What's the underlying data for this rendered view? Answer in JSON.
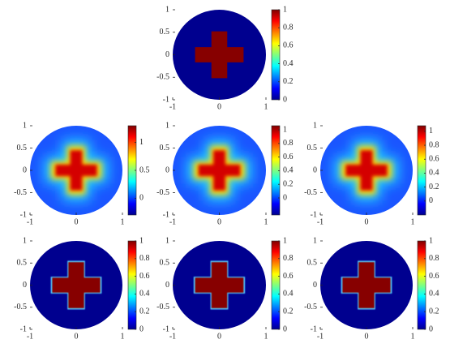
{
  "chart_data": [
    {
      "type": "image",
      "xlim": [
        -1,
        1
      ],
      "xticks": [
        -1,
        0,
        1
      ],
      "ylim": [
        -1,
        1
      ],
      "yticks": [
        -1,
        -0.5,
        0,
        0.5,
        1
      ],
      "clim": [
        0,
        1
      ],
      "cticks": [
        0,
        0.2,
        0.4,
        0.6,
        0.8,
        1
      ]
    },
    {
      "type": "image",
      "xlim": [
        -1,
        1
      ],
      "xticks": [
        -1,
        0,
        1
      ],
      "ylim": [
        -1,
        1
      ],
      "yticks": [
        -1,
        -0.5,
        0,
        0.5,
        1
      ],
      "clim": [
        -0.3,
        1.3
      ],
      "cticks": [
        0,
        0.5,
        1
      ]
    },
    {
      "type": "image",
      "xlim": [
        -1,
        1
      ],
      "xticks": [
        -1,
        0,
        1
      ],
      "ylim": [
        -1,
        1
      ],
      "yticks": [
        -1,
        -0.5,
        0,
        0.5,
        1
      ],
      "clim": [
        -0.25,
        1.06
      ],
      "cticks": [
        0,
        0.2,
        0.4,
        0.6,
        0.8,
        1
      ]
    },
    {
      "type": "image",
      "xlim": [
        -1,
        1
      ],
      "xticks": [
        -1,
        0,
        1
      ],
      "ylim": [
        -1,
        1
      ],
      "yticks": [
        -1,
        -0.5,
        0,
        0.5,
        1
      ],
      "clim": [
        -0.2,
        1.08
      ],
      "cticks": [
        0,
        0.2,
        0.4,
        0.6,
        0.8,
        1
      ]
    },
    {
      "type": "image",
      "xlim": [
        -1,
        1
      ],
      "xticks": [
        -1,
        0,
        1
      ],
      "ylim": [
        -1,
        1
      ],
      "yticks": [
        -1,
        -0.5,
        0,
        0.5,
        1
      ],
      "clim": [
        0,
        1
      ],
      "cticks": [
        0,
        0.2,
        0.4,
        0.6,
        0.8,
        1
      ]
    },
    {
      "type": "image",
      "xlim": [
        -1,
        1
      ],
      "xticks": [
        -1,
        0,
        1
      ],
      "ylim": [
        -1,
        1
      ],
      "yticks": [
        -1,
        -0.5,
        0,
        0.5,
        1
      ],
      "clim": [
        0,
        1
      ],
      "cticks": [
        0,
        0.2,
        0.4,
        0.6,
        0.8,
        1
      ]
    },
    {
      "type": "image",
      "xlim": [
        -1,
        1
      ],
      "xticks": [
        -1,
        0,
        1
      ],
      "ylim": [
        -1,
        1
      ],
      "yticks": [
        -1,
        -0.5,
        0,
        0.5,
        1
      ],
      "clim": [
        0,
        1
      ],
      "cticks": [
        0,
        0.2,
        0.4,
        0.6,
        0.8,
        1
      ]
    }
  ]
}
